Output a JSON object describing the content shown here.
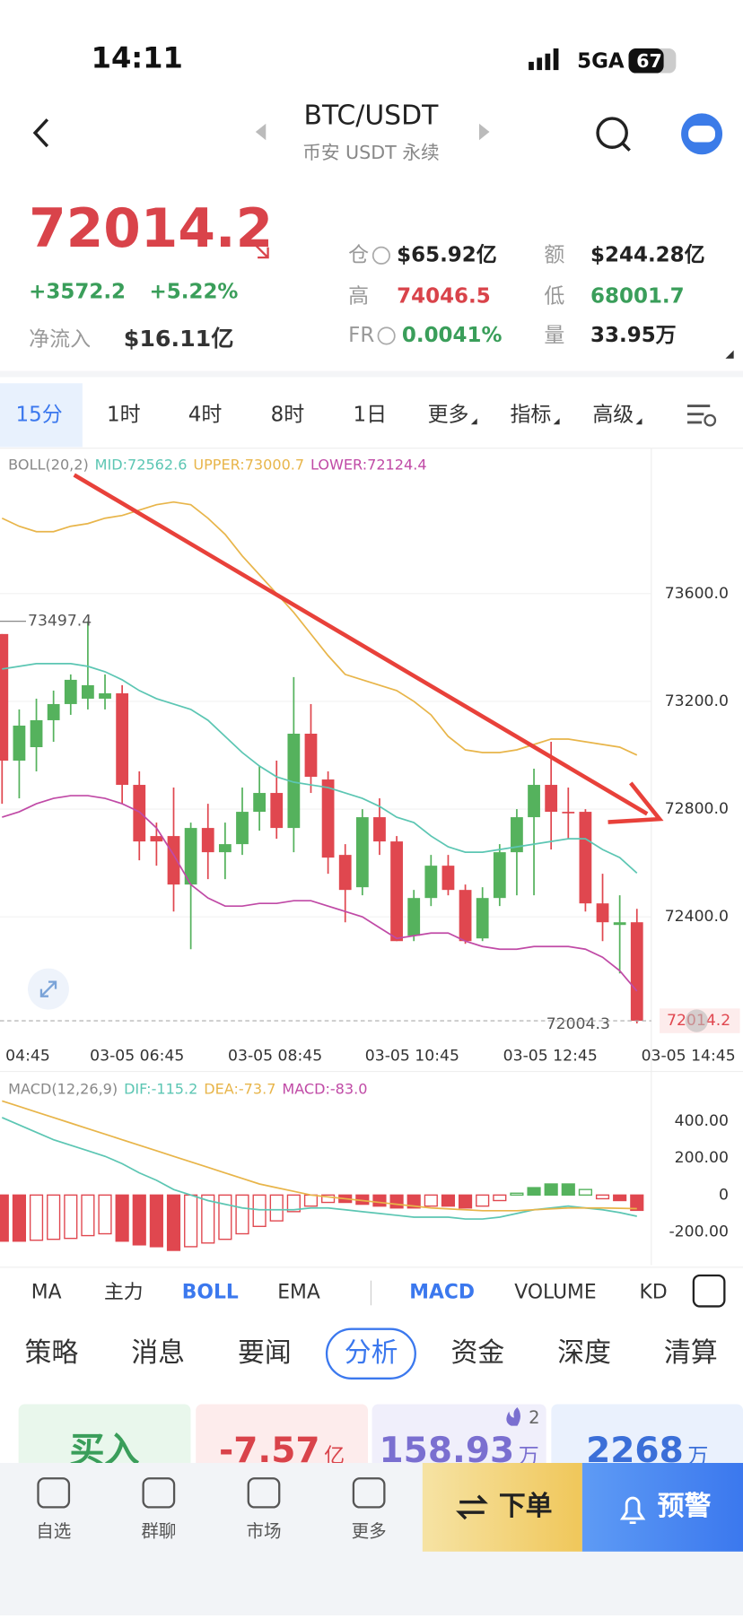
{
  "status_bar": {
    "time": "14:11",
    "network": "5GA",
    "battery": "67"
  },
  "header": {
    "pair": "BTC/USDT",
    "subtitle": "币安 USDT 永续"
  },
  "ticker": {
    "price": "72014.2",
    "change": "+3572.2",
    "change_pct": "+5.22%",
    "net_inflow_label": "净流入",
    "net_inflow": "$16.11亿"
  },
  "stats": [
    {
      "label": "仓",
      "value": "$65.92亿",
      "color": "#222222"
    },
    {
      "label": "额",
      "value": "$244.28亿",
      "color": "#222222"
    },
    {
      "label": "高",
      "value": "74046.5",
      "color": "#d9434a"
    },
    {
      "label": "低",
      "value": "68001.7",
      "color": "#3a9e5a"
    },
    {
      "label": "FR",
      "value": "0.0041%",
      "color": "#3a9e5a"
    },
    {
      "label": "量",
      "value": "33.95万",
      "color": "#222222"
    }
  ],
  "timeframes": [
    "15分",
    "1时",
    "4时",
    "8时",
    "1日",
    "更多",
    "指标",
    "高级"
  ],
  "active_timeframe": 0,
  "kline": {
    "legend": [
      {
        "text": "BOLL(20,2)",
        "color": "#888888"
      },
      {
        "text": "MID:72562.6",
        "color": "#5cc6b3"
      },
      {
        "text": "UPPER:73000.7",
        "color": "#e8b54a"
      },
      {
        "text": "LOWER:72124.4",
        "color": "#c04aa6"
      }
    ],
    "ylim": [
      71960,
      74140
    ],
    "yticks": [
      {
        "value": 73600,
        "label": "73600.0"
      },
      {
        "value": 73200,
        "label": "73200.0"
      },
      {
        "value": 72800,
        "label": "72800.0"
      },
      {
        "value": 72400,
        "label": "72400.0"
      }
    ],
    "time_labels": [
      "04:45",
      "03-05 06:45",
      "03-05 08:45",
      "03-05 10:45",
      "03-05 12:45",
      "03-05 14:45"
    ],
    "up_color": "#55b25d",
    "down_color": "#e0474f",
    "open": [
      73450,
      72980,
      73030,
      73130,
      73190,
      73210,
      73210,
      73230,
      72890,
      72700,
      72700,
      72520,
      72730,
      72640,
      72670,
      72790,
      72860,
      72730,
      73080,
      72910,
      72630,
      72510,
      72770,
      72680,
      72330,
      72470,
      72590,
      72500,
      72320,
      72470,
      72640,
      72770,
      72890,
      72790,
      72790,
      72450,
      72370,
      72380
    ],
    "high": [
      73450,
      73170,
      73210,
      73240,
      73300,
      73497.4,
      73300,
      73260,
      72940,
      72750,
      72880,
      72750,
      72820,
      72750,
      72880,
      72960,
      72980,
      73290,
      73190,
      72940,
      72670,
      72800,
      72840,
      72700,
      72500,
      72630,
      72630,
      72520,
      72510,
      72670,
      72800,
      72950,
      73050,
      72880,
      72800,
      72560,
      72480,
      72430
    ],
    "low": [
      72820,
      72840,
      72940,
      73050,
      73150,
      73170,
      73170,
      72820,
      72610,
      72590,
      72420,
      72280,
      72540,
      72540,
      72630,
      72720,
      72690,
      72640,
      72860,
      72560,
      72380,
      72480,
      72630,
      72310,
      72310,
      72440,
      72480,
      72300,
      72310,
      72440,
      72480,
      72480,
      72650,
      72690,
      72420,
      72310,
      72190,
      72004.3
    ],
    "close": [
      72980,
      73110,
      73130,
      73190,
      73280,
      73260,
      73230,
      72890,
      72680,
      72680,
      72520,
      72730,
      72640,
      72670,
      72790,
      72860,
      72730,
      73080,
      72920,
      72620,
      72500,
      72770,
      72680,
      72310,
      72470,
      72590,
      72500,
      72310,
      72470,
      72640,
      72770,
      72890,
      72790,
      72790,
      72450,
      72380,
      72380,
      72014.2
    ],
    "boll": [
      {
        "color": "#e8b54a",
        "values": [
          73880,
          73850,
          73830,
          73830,
          73850,
          73860,
          73880,
          73890,
          73910,
          73930,
          73940,
          73930,
          73880,
          73820,
          73740,
          73670,
          73600,
          73530,
          73450,
          73370,
          73300,
          73280,
          73260,
          73240,
          73200,
          73150,
          73070,
          73020,
          73010,
          73010,
          73020,
          73040,
          73060,
          73060,
          73050,
          73040,
          73030,
          73000.7
        ]
      },
      {
        "color": "#5cc6b3",
        "values": [
          73320,
          73330,
          73340,
          73340,
          73340,
          73330,
          73310,
          73280,
          73240,
          73210,
          73190,
          73170,
          73130,
          73070,
          73010,
          72960,
          72920,
          72900,
          72890,
          72880,
          72860,
          72840,
          72810,
          72770,
          72750,
          72700,
          72660,
          72640,
          72640,
          72650,
          72660,
          72670,
          72680,
          72690,
          72690,
          72650,
          72620,
          72562.6
        ]
      },
      {
        "color": "#c04aa6",
        "values": [
          72770,
          72790,
          72820,
          72840,
          72850,
          72850,
          72840,
          72820,
          72790,
          72730,
          72630,
          72520,
          72470,
          72440,
          72440,
          72450,
          72450,
          72460,
          72460,
          72440,
          72420,
          72400,
          72360,
          72320,
          72330,
          72340,
          72340,
          72310,
          72290,
          72280,
          72280,
          72290,
          72290,
          72290,
          72280,
          72250,
          72200,
          72124.4
        ]
      }
    ]
  },
  "macd": {
    "legend": [
      {
        "text": "MACD(12,26,9)",
        "color": "#888888"
      },
      {
        "text": "DIF:-115.2",
        "color": "#5cc6b3"
      },
      {
        "text": "DEA:-73.7",
        "color": "#e8b54a"
      },
      {
        "text": "MACD:-83.0",
        "color": "#c04aa6"
      }
    ],
    "ylim": [
      -380,
      670
    ],
    "yticks": [
      {
        "value": 400,
        "label": "400.00"
      },
      {
        "value": 200,
        "label": "200.00"
      },
      0,
      {
        "value": -200,
        "label": "-200.00"
      }
    ],
    "histogram": [
      -250,
      -250,
      -245,
      -240,
      -235,
      -220,
      -210,
      -250,
      -270,
      -280,
      -300,
      -280,
      -260,
      -240,
      -210,
      -170,
      -140,
      -90,
      -60,
      -40,
      -40,
      -50,
      -60,
      -70,
      -70,
      -60,
      -60,
      -70,
      -60,
      -30,
      10,
      40,
      60,
      60,
      30,
      -20,
      -30,
      -83.0
    ],
    "dif": [
      420,
      380,
      340,
      300,
      270,
      240,
      210,
      170,
      120,
      80,
      30,
      0,
      -30,
      -50,
      -70,
      -80,
      -80,
      -80,
      -70,
      -70,
      -80,
      -90,
      -100,
      -110,
      -120,
      -120,
      -120,
      -130,
      -130,
      -120,
      -100,
      -80,
      -70,
      -60,
      -70,
      -80,
      -95,
      -115.2
    ],
    "dea": [
      510,
      480,
      450,
      420,
      390,
      360,
      330,
      300,
      270,
      240,
      210,
      180,
      150,
      120,
      90,
      60,
      40,
      20,
      0,
      -10,
      -20,
      -30,
      -40,
      -50,
      -60,
      -70,
      -75,
      -80,
      -85,
      -85,
      -85,
      -80,
      -75,
      -70,
      -70,
      -70,
      -72,
      -73.7
    ],
    "dif_color": "#5cc6b3",
    "dea_color": "#e8b54a"
  },
  "indicator_tabs": [
    "MA",
    "主力",
    "BOLL",
    "EMA",
    "MACD",
    "VOLUME",
    "KD"
  ],
  "active_indicators": [
    2,
    4
  ],
  "tabs": [
    "策略",
    "消息",
    "要闻",
    "分析",
    "资金",
    "深度",
    "清算"
  ],
  "active_tab": 3,
  "cards": [
    {
      "value": "买入",
      "color": "#3a9e5a",
      "bg": "#e9f7ec"
    },
    {
      "value": "-7.57",
      "unit": "亿",
      "color": "#d9434a",
      "bg": "#fdecec"
    },
    {
      "value": "158.93",
      "unit": "万",
      "badge": "2",
      "color": "#7a6fd0",
      "bg": "#f0effb"
    },
    {
      "value": "2268",
      "unit": "万",
      "color": "#3b6fd8",
      "bg": "#eaf1fd"
    }
  ],
  "bottom_nav": [
    "自选",
    "群聊",
    "市场",
    "更多"
  ],
  "actions": [
    "下单",
    "预警"
  ]
}
